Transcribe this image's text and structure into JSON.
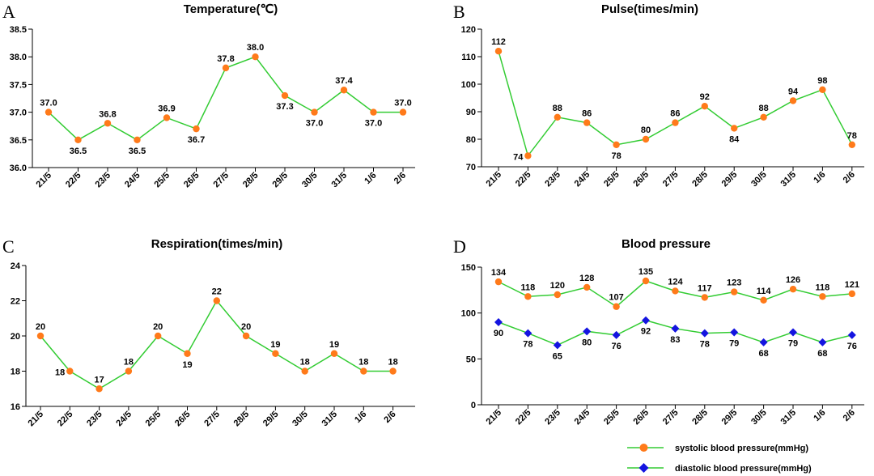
{
  "colors": {
    "line": "#33cc33",
    "systolic_marker": "#ff7a1a",
    "diastolic_marker": "#1414e0",
    "axis": "#000000"
  },
  "chart_data": [
    {
      "panel": "A",
      "type": "line",
      "title": "Temperature(℃)",
      "categories": [
        "21/5",
        "22/5",
        "23/5",
        "24/5",
        "25/5",
        "26/5",
        "27/5",
        "28/5",
        "29/5",
        "30/5",
        "31/5",
        "1/6",
        "2/6"
      ],
      "series": [
        {
          "name": "Temperature",
          "values": [
            37.0,
            36.5,
            36.8,
            36.5,
            36.9,
            36.7,
            37.8,
            38.0,
            37.3,
            37.0,
            37.4,
            37.0,
            37.0
          ]
        }
      ],
      "value_labels": [
        "37.0",
        "36.5",
        "36.8",
        "36.5",
        "36.9",
        "36.7",
        "37.8",
        "38.0",
        "37.3",
        "37.0",
        "37.4",
        "37.0",
        "37.0"
      ],
      "label_pos": [
        "above",
        "below",
        "above",
        "below",
        "above",
        "below",
        "above",
        "above",
        "below",
        "below",
        "above",
        "below",
        "above"
      ],
      "ylim": [
        36.0,
        38.5
      ],
      "yticks": [
        "36.0",
        "36.5",
        "37.0",
        "37.5",
        "38.0",
        "38.5"
      ]
    },
    {
      "panel": "B",
      "type": "line",
      "title": "Pulse(times/min)",
      "categories": [
        "21/5",
        "22/5",
        "23/5",
        "24/5",
        "25/5",
        "26/5",
        "27/5",
        "28/5",
        "29/5",
        "30/5",
        "31/5",
        "1/6",
        "2/6"
      ],
      "series": [
        {
          "name": "Pulse",
          "values": [
            112,
            74,
            88,
            86,
            78,
            80,
            86,
            92,
            84,
            88,
            94,
            98,
            78
          ]
        }
      ],
      "value_labels": [
        "112",
        "74",
        "88",
        "86",
        "78",
        "80",
        "86",
        "92",
        "84",
        "88",
        "94",
        "98",
        "78"
      ],
      "label_pos": [
        "above",
        "left",
        "above",
        "above",
        "below",
        "above",
        "above",
        "above",
        "below",
        "above",
        "above",
        "above",
        "above"
      ],
      "ylim": [
        70,
        120
      ],
      "yticks": [
        "70",
        "80",
        "90",
        "100",
        "110",
        "120"
      ]
    },
    {
      "panel": "C",
      "type": "line",
      "title": "Respiration(times/min)",
      "categories": [
        "21/5",
        "22/5",
        "23/5",
        "24/5",
        "25/5",
        "26/5",
        "27/5",
        "28/5",
        "29/5",
        "30/5",
        "31/5",
        "1/6",
        "2/6"
      ],
      "series": [
        {
          "name": "Respiration",
          "values": [
            20,
            18,
            17,
            18,
            20,
            19,
            22,
            20,
            19,
            18,
            19,
            18,
            18
          ]
        }
      ],
      "value_labels": [
        "20",
        "18",
        "17",
        "18",
        "20",
        "19",
        "22",
        "20",
        "19",
        "18",
        "19",
        "18",
        "18"
      ],
      "label_pos": [
        "above",
        "left",
        "above",
        "above",
        "above",
        "below",
        "above",
        "above",
        "above",
        "above",
        "above",
        "above",
        "above"
      ],
      "ylim": [
        16,
        24
      ],
      "yticks": [
        "16",
        "18",
        "20",
        "22",
        "24"
      ]
    },
    {
      "panel": "D",
      "type": "line",
      "title": "Blood pressure",
      "categories": [
        "21/5",
        "22/5",
        "23/5",
        "24/5",
        "25/5",
        "26/5",
        "27/5",
        "28/5",
        "29/5",
        "30/5",
        "31/5",
        "1/6",
        "2/6"
      ],
      "series": [
        {
          "name": "systolic blood pressure(mmHg)",
          "marker": "circle",
          "values": [
            134,
            118,
            120,
            128,
            107,
            135,
            124,
            117,
            123,
            114,
            126,
            118,
            121
          ]
        },
        {
          "name": "diastolic blood pressure(mmHg)",
          "marker": "diamond",
          "values": [
            90,
            78,
            65,
            80,
            76,
            92,
            83,
            78,
            79,
            68,
            79,
            68,
            76
          ]
        }
      ],
      "systolic_labels": [
        "134",
        "118",
        "120",
        "128",
        "107",
        "135",
        "124",
        "117",
        "123",
        "114",
        "126",
        "118",
        "121"
      ],
      "diastolic_labels": [
        "90",
        "78",
        "65",
        "80",
        "76",
        "92",
        "83",
        "78",
        "79",
        "68",
        "79",
        "68",
        "76"
      ],
      "ylim": [
        0,
        150
      ],
      "yticks": [
        "0",
        "50",
        "100",
        "150"
      ],
      "legend": [
        "systolic blood pressure(mmHg)",
        "diastolic blood pressure(mmHg)"
      ],
      "legend_position": "bottom-right"
    }
  ]
}
